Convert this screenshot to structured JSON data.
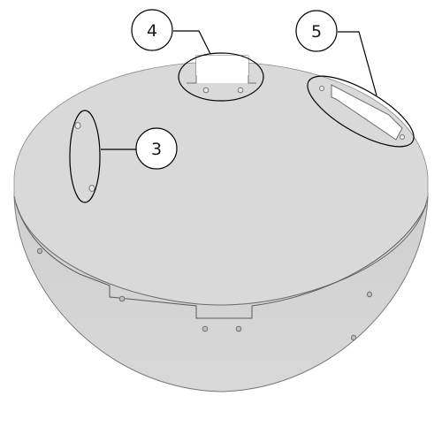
{
  "diagram": {
    "callouts": [
      {
        "id": "3",
        "label": "3"
      },
      {
        "id": "4",
        "label": "4"
      },
      {
        "id": "5",
        "label": "5"
      }
    ],
    "colors": {
      "bowl_fill": "#d3d3d3",
      "bowl_inner": "#dcdcdc",
      "edge": "#6e6e6e",
      "stroke": "#000000",
      "background": "#ffffff"
    }
  }
}
